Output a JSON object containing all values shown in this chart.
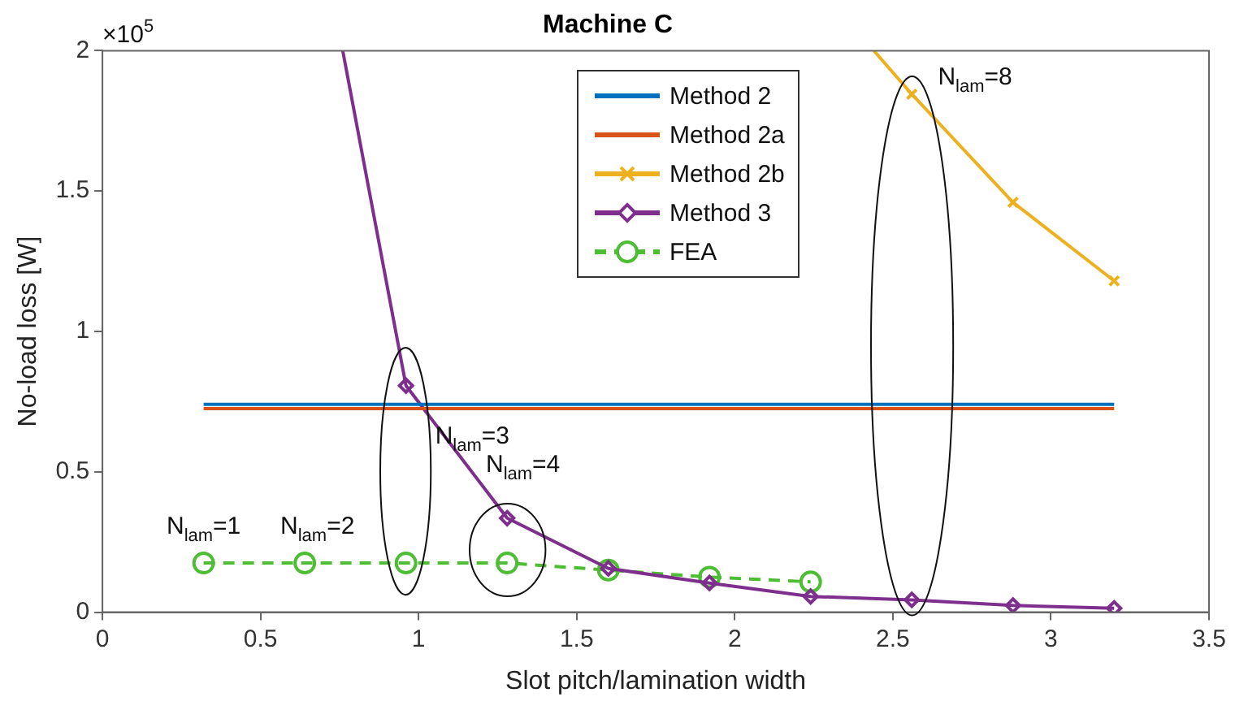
{
  "chart_data": {
    "type": "line",
    "title": "Machine C",
    "xlabel": "Slot pitch/lamination width",
    "ylabel": "No-load loss [W]",
    "xlim": [
      0,
      3.5
    ],
    "xticks": [
      0,
      0.5,
      1,
      1.5,
      2,
      2.5,
      3,
      3.5
    ],
    "ylim": [
      0,
      2
    ],
    "yticks": [
      0,
      0.5,
      1,
      1.5,
      2
    ],
    "grid": false,
    "legend": "top",
    "series": [
      {
        "name": "Method 2",
        "color": "#0072bd",
        "marker": "none",
        "line_style": "solid",
        "x": [
          0.32,
          3.2
        ],
        "values": [
          0.74,
          0.74
        ]
      },
      {
        "name": "Method 2a",
        "color": "#d95319",
        "marker": "none",
        "line_style": "solid",
        "x": [
          0.32,
          3.2
        ],
        "values": [
          0.725,
          0.725
        ]
      },
      {
        "name": "Method 2b",
        "color": "#edb120",
        "marker": "cross",
        "line_style": "solid",
        "x": [
          2.44,
          2.56,
          2.88,
          3.2
        ],
        "values": [
          2,
          1.845,
          1.46,
          1.18
        ]
      },
      {
        "name": "Method 3",
        "color": "#7e2f8e",
        "marker": "diamond",
        "line_style": "solid",
        "x": [
          0.76,
          0.96,
          1.28,
          1.6,
          1.92,
          2.24,
          2.56,
          2.88,
          3.2
        ],
        "values": [
          2,
          0.807,
          0.335,
          0.156,
          0.104,
          0.056,
          0.044,
          0.024,
          0.014
        ]
      },
      {
        "name": "FEA",
        "color": "#4dbd33",
        "marker": "circle",
        "line_style": "dashed",
        "x": [
          0.32,
          0.64,
          0.96,
          1.28,
          1.6,
          1.92,
          2.24
        ],
        "values": [
          0.175,
          0.175,
          0.175,
          0.175,
          0.15,
          0.125,
          0.108
        ]
      }
    ],
    "annotations": [
      "×10$^{5}$",
      "N$_{lam}$=1",
      "N$_{lam}$=2",
      "N$_{lam}$=3",
      "N$_{lam}$=4",
      "N$_{lam}$=8"
    ]
  }
}
